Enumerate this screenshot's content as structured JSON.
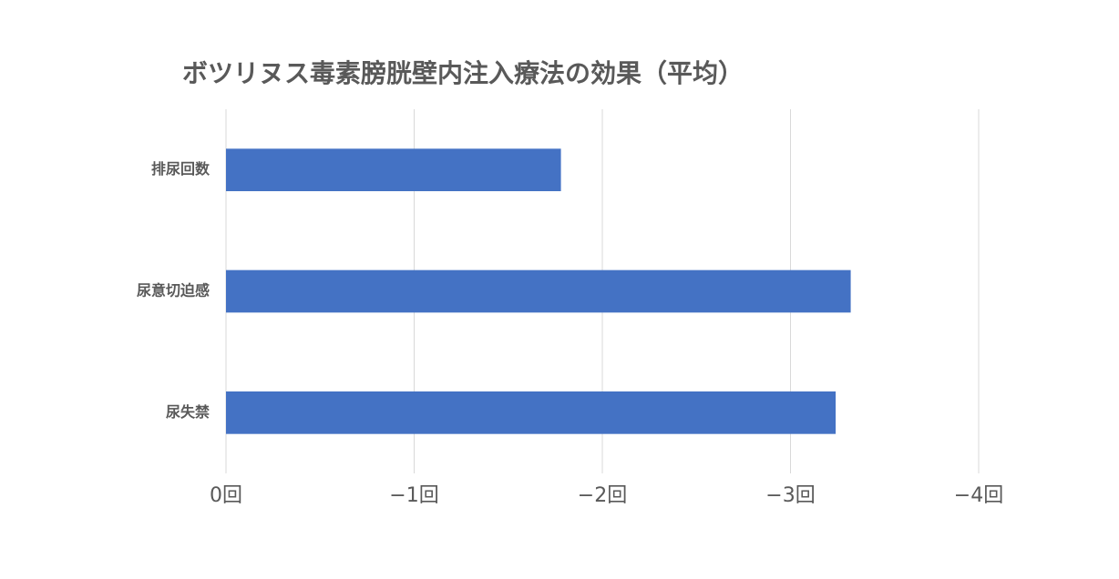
{
  "chart_data": {
    "type": "barh",
    "title": "ボツリヌス毒素膀胱壁内注入療法の効果（平均）",
    "categories": [
      "排尿回数",
      "尿意切迫感",
      "尿失禁"
    ],
    "values": [
      -1.78,
      -3.32,
      -3.24
    ],
    "color": "#4472c4",
    "xlim": [
      0,
      -4
    ],
    "xticks": [
      {
        "value": 0,
        "label": "0回"
      },
      {
        "value": -1,
        "label": "−1回"
      },
      {
        "value": -2,
        "label": "−2回"
      },
      {
        "value": -3,
        "label": "−3回"
      },
      {
        "value": -4,
        "label": "−4回"
      }
    ],
    "grid": true
  }
}
